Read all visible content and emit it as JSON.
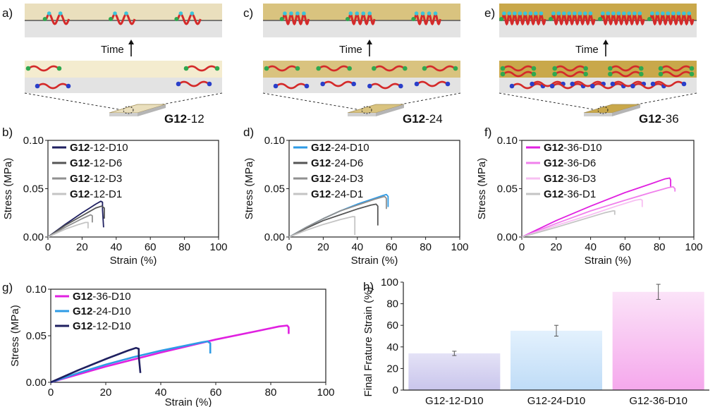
{
  "panel_letters": [
    "a)",
    "b)",
    "c)",
    "d)",
    "e)",
    "f)",
    "g)",
    "h)"
  ],
  "schematics": [
    {
      "label_bold": "G12",
      "label_rest": "-12",
      "time_label": "Time",
      "film_color": "#eadfbd",
      "helix_count": 3,
      "helix_turns": 2,
      "coil_count": 2
    },
    {
      "label_bold": "G12",
      "label_rest": "-24",
      "time_label": "Time",
      "film_color": "#d9c37f",
      "helix_count": 3,
      "helix_turns": 4,
      "coil_count": 4
    },
    {
      "label_bold": "G12",
      "label_rest": "-36",
      "time_label": "Time",
      "film_color": "#c9a84a",
      "helix_count": 4,
      "helix_turns": 8,
      "coil_count": 8
    }
  ],
  "colors": {
    "helix": "#d42a2a",
    "bead_top": "#3bc4d8",
    "end_green": "#2fa84f",
    "end_blue": "#2a3fc9",
    "substrate": "#e3e3e3",
    "line": "#555555"
  },
  "chart_data": [
    {
      "id": "b",
      "type": "line",
      "xlabel": "Strain (%)",
      "ylabel": "Stress (MPa)",
      "xlim": [
        0,
        100
      ],
      "ylim": [
        0,
        0.1
      ],
      "xticks": [
        "0",
        "20",
        "40",
        "60",
        "80",
        "100"
      ],
      "yticks": [
        "0.00",
        "0.05",
        "0.10"
      ],
      "legend_position": "top-left",
      "series": [
        {
          "name_bold": "G12",
          "name_rest": "-12-D10",
          "color": "#1f2060",
          "x": [
            0,
            10,
            20,
            28,
            31,
            32,
            32,
            32.6
          ],
          "y": [
            0,
            0.013,
            0.025,
            0.034,
            0.037,
            0.036,
            0.028,
            0.01
          ]
        },
        {
          "name_bold": "G12",
          "name_rest": "-12-D6",
          "color": "#555555",
          "x": [
            0,
            10,
            20,
            28,
            31.5,
            33,
            33
          ],
          "y": [
            0,
            0.012,
            0.022,
            0.03,
            0.032,
            0.03,
            0.019
          ]
        },
        {
          "name_bold": "G12",
          "name_rest": "-12-D3",
          "color": "#909090",
          "x": [
            0,
            10,
            20,
            25,
            26,
            26
          ],
          "y": [
            0,
            0.01,
            0.019,
            0.023,
            0.022,
            0.015
          ]
        },
        {
          "name_bold": "G12",
          "name_rest": "-12-D1",
          "color": "#c4c4c4",
          "x": [
            0,
            10,
            18,
            22,
            23.5,
            23.5
          ],
          "y": [
            0,
            0.008,
            0.013,
            0.015,
            0.015,
            0.009
          ]
        }
      ]
    },
    {
      "id": "d",
      "type": "line",
      "xlabel": "Strain (%)",
      "ylabel": "Stress (MPa)",
      "xlim": [
        0,
        100
      ],
      "ylim": [
        0,
        0.1
      ],
      "xticks": [
        "0",
        "20",
        "40",
        "60",
        "80",
        "100"
      ],
      "yticks": [
        "0.00",
        "0.05",
        "0.10"
      ],
      "legend_position": "top-left",
      "series": [
        {
          "name_bold": "G12",
          "name_rest": "-24-D10",
          "color": "#2e9be6",
          "x": [
            0,
            10,
            20,
            30,
            40,
            50,
            55,
            57,
            58,
            58
          ],
          "y": [
            0,
            0.01,
            0.019,
            0.027,
            0.034,
            0.04,
            0.043,
            0.044,
            0.042,
            0.031
          ]
        },
        {
          "name_bold": "G12",
          "name_rest": "-24-D6",
          "color": "#555555",
          "x": [
            0,
            10,
            20,
            30,
            40,
            48,
            51,
            52,
            52
          ],
          "y": [
            0,
            0.009,
            0.017,
            0.023,
            0.029,
            0.033,
            0.034,
            0.032,
            0.012
          ]
        },
        {
          "name_bold": "G12",
          "name_rest": "-24-D3",
          "color": "#909090",
          "x": [
            0,
            10,
            20,
            30,
            40,
            50,
            54,
            56,
            57,
            57
          ],
          "y": [
            0,
            0.01,
            0.019,
            0.027,
            0.033,
            0.039,
            0.041,
            0.042,
            0.04,
            0.029
          ]
        },
        {
          "name_bold": "G12",
          "name_rest": "-24-D1",
          "color": "#c4c4c4",
          "x": [
            0,
            10,
            20,
            30,
            37,
            38.5,
            38.5
          ],
          "y": [
            0,
            0.007,
            0.013,
            0.018,
            0.021,
            0.021,
            0.002
          ]
        }
      ]
    },
    {
      "id": "f",
      "type": "line",
      "xlabel": "Strain (%)",
      "ylabel": "Stress (MPa)",
      "xlim": [
        0,
        100
      ],
      "ylim": [
        0,
        0.1
      ],
      "xticks": [
        "0",
        "20",
        "40",
        "60",
        "80",
        "100"
      ],
      "yticks": [
        "0.00",
        "0.05",
        "0.10"
      ],
      "legend_position": "top-left",
      "series": [
        {
          "name_bold": "G12",
          "name_rest": "-36-D10",
          "color": "#e020e0",
          "x": [
            0,
            20,
            40,
            60,
            75,
            83,
            86,
            86.5,
            86.5
          ],
          "y": [
            0,
            0.017,
            0.032,
            0.046,
            0.055,
            0.06,
            0.061,
            0.059,
            0.052
          ]
        },
        {
          "name_bold": "G12",
          "name_rest": "-36-D6",
          "color": "#f080ec",
          "x": [
            0,
            20,
            40,
            60,
            75,
            85,
            88,
            89,
            89
          ],
          "y": [
            0,
            0.014,
            0.027,
            0.038,
            0.046,
            0.051,
            0.052,
            0.05,
            0.047
          ]
        },
        {
          "name_bold": "G12",
          "name_rest": "-36-D3",
          "color": "#f7bff2",
          "x": [
            0,
            20,
            40,
            55,
            66,
            69,
            70,
            70
          ],
          "y": [
            0,
            0.012,
            0.023,
            0.032,
            0.038,
            0.039,
            0.038,
            0.031
          ]
        },
        {
          "name_bold": "G12",
          "name_rest": "-36-D1",
          "color": "#c4c4c4",
          "x": [
            0,
            20,
            35,
            48,
            53,
            54,
            54
          ],
          "y": [
            0,
            0.01,
            0.018,
            0.025,
            0.027,
            0.027,
            0.023
          ]
        }
      ]
    },
    {
      "id": "g",
      "type": "line",
      "xlabel": "Strain (%)",
      "ylabel": "Stress (MPa)",
      "xlim": [
        0,
        100
      ],
      "ylim": [
        0,
        0.1
      ],
      "xticks": [
        "0",
        "20",
        "40",
        "60",
        "80",
        "100"
      ],
      "yticks": [
        "0.00",
        "0.05",
        "0.10"
      ],
      "legend_position": "top-left",
      "series": [
        {
          "name_bold": "G12",
          "name_rest": "-36-D10",
          "color": "#e020e0",
          "x": [
            0,
            20,
            40,
            60,
            75,
            83,
            86,
            86.5,
            86.5
          ],
          "y": [
            0,
            0.017,
            0.032,
            0.046,
            0.055,
            0.06,
            0.061,
            0.059,
            0.052
          ]
        },
        {
          "name_bold": "G12",
          "name_rest": "-24-D10",
          "color": "#2e9be6",
          "x": [
            0,
            10,
            20,
            30,
            40,
            50,
            55,
            57,
            58,
            58
          ],
          "y": [
            0,
            0.01,
            0.019,
            0.027,
            0.034,
            0.04,
            0.043,
            0.044,
            0.042,
            0.031
          ]
        },
        {
          "name_bold": "G12",
          "name_rest": "-12-D10",
          "color": "#1f2060",
          "x": [
            0,
            10,
            20,
            28,
            31,
            32,
            32,
            32.6
          ],
          "y": [
            0,
            0.013,
            0.025,
            0.034,
            0.037,
            0.036,
            0.028,
            0.01
          ]
        }
      ]
    },
    {
      "id": "h",
      "type": "bar",
      "ylabel": "Final Frature Strain (%)",
      "ylim": [
        0,
        100
      ],
      "yticks": [
        "0",
        "20",
        "40",
        "60",
        "80",
        "100"
      ],
      "categories": [
        "G12-12-D10",
        "G12-24-D10",
        "G12-36-D10"
      ],
      "values": [
        34,
        55,
        91
      ],
      "errors": [
        2,
        5,
        7
      ],
      "colors": [
        [
          "#e4e2f6",
          "#c9c5ec"
        ],
        [
          "#e3f1fd",
          "#bfdcf7"
        ],
        [
          "#fbe3f8",
          "#f5a8ec"
        ]
      ]
    }
  ]
}
